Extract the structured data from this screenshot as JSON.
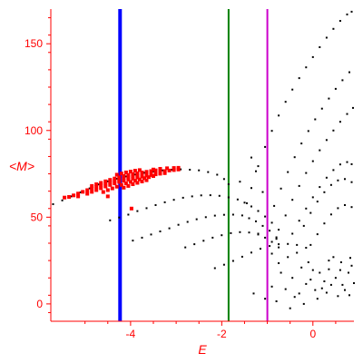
{
  "chart_data": {
    "type": "scatter",
    "xlabel": "E",
    "ylabel": "<M>",
    "xlim": [
      -5.75,
      0.9
    ],
    "ylim": [
      -10,
      170
    ],
    "xticks": [
      -4,
      -2,
      0
    ],
    "xtick_labels": [
      "-4",
      "-2",
      "0"
    ],
    "yticks": [
      0,
      50,
      100,
      150
    ],
    "ytick_labels": [
      "0",
      "50",
      "100",
      "150"
    ],
    "grid": false,
    "axis_color": "#ff0000",
    "vertical_lines": [
      {
        "x": -4.23,
        "color": "#0000ff"
      },
      {
        "x": -1.85,
        "color": "#008000"
      },
      {
        "x": -1.0,
        "color": "#cc00cc"
      }
    ],
    "series": [
      {
        "color": "#000000",
        "points": [
          [
            -5.7,
            57.5
          ],
          [
            -5.5,
            59.7
          ],
          [
            -5.3,
            62.0
          ],
          [
            -5.1,
            64.3
          ],
          [
            -4.9,
            66.6
          ],
          [
            -4.7,
            68.9
          ],
          [
            -4.5,
            70.7
          ],
          [
            -4.3,
            72.2
          ],
          [
            -4.1,
            73.5
          ],
          [
            -3.9,
            74.6
          ],
          [
            -3.7,
            75.6
          ],
          [
            -3.5,
            76.4
          ],
          [
            -3.3,
            77.0
          ],
          [
            -3.1,
            77.4
          ],
          [
            -2.9,
            77.6
          ],
          [
            -2.7,
            77.4
          ],
          [
            -2.5,
            77.0
          ],
          [
            -2.3,
            76.0
          ],
          [
            -2.1,
            74.5
          ],
          [
            -1.95,
            72.0
          ],
          [
            -1.85,
            69.0
          ],
          [
            -4.45,
            48.2
          ],
          [
            -4.25,
            49.8
          ],
          [
            -4.05,
            51.5
          ],
          [
            -3.85,
            53.5
          ],
          [
            -3.65,
            55.2
          ],
          [
            -3.45,
            57.0
          ],
          [
            -3.25,
            58.6
          ],
          [
            -3.05,
            60.0
          ],
          [
            -2.85,
            61.2
          ],
          [
            -2.65,
            62.0
          ],
          [
            -2.45,
            62.6
          ],
          [
            -2.25,
            62.7
          ],
          [
            -2.05,
            62.3
          ],
          [
            -1.85,
            61.4
          ],
          [
            -1.65,
            60.2
          ],
          [
            -1.5,
            58.4
          ],
          [
            -1.35,
            56.2
          ],
          [
            -1.2,
            53.6
          ],
          [
            -1.05,
            50.4
          ],
          [
            -0.9,
            46.8
          ],
          [
            -0.75,
            42.8
          ],
          [
            -3.95,
            36.5
          ],
          [
            -3.75,
            38.2
          ],
          [
            -3.55,
            40.0
          ],
          [
            -3.35,
            41.8
          ],
          [
            -3.15,
            43.6
          ],
          [
            -2.95,
            45.6
          ],
          [
            -2.75,
            47.3
          ],
          [
            -2.55,
            48.8
          ],
          [
            -2.35,
            50.0
          ],
          [
            -2.15,
            50.9
          ],
          [
            -1.95,
            51.4
          ],
          [
            -1.75,
            51.5
          ],
          [
            -1.55,
            51.0
          ],
          [
            -1.4,
            49.4
          ],
          [
            -1.25,
            47.6
          ],
          [
            -1.1,
            45.0
          ],
          [
            -0.95,
            42.2
          ],
          [
            -0.8,
            38.4
          ],
          [
            -2.8,
            32.6
          ],
          [
            -2.6,
            34.4
          ],
          [
            -2.4,
            36.4
          ],
          [
            -2.2,
            38.2
          ],
          [
            -2.0,
            39.6
          ],
          [
            -1.8,
            40.8
          ],
          [
            -1.6,
            41.4
          ],
          [
            -1.4,
            41.2
          ],
          [
            -1.2,
            40.0
          ],
          [
            -1.05,
            38.2
          ],
          [
            -0.9,
            35.8
          ],
          [
            -0.75,
            32.6
          ],
          [
            -2.15,
            20.6
          ],
          [
            -1.95,
            22.6
          ],
          [
            -1.75,
            24.8
          ],
          [
            -1.55,
            27.2
          ],
          [
            -1.35,
            29.6
          ],
          [
            -1.15,
            31.8
          ],
          [
            -0.95,
            33.4
          ],
          [
            -0.75,
            34.4
          ],
          [
            -0.55,
            34.6
          ],
          [
            -0.35,
            34.0
          ],
          [
            -0.15,
            32.4
          ],
          [
            -1.45,
            58.0
          ],
          [
            -1.35,
            66.8
          ],
          [
            -1.2,
            79.4
          ],
          [
            -1.05,
            90.5
          ],
          [
            -0.9,
            99.8
          ],
          [
            -0.75,
            108.6
          ],
          [
            -0.6,
            116.5
          ],
          [
            -0.45,
            123.6
          ],
          [
            -0.3,
            130.2
          ],
          [
            -0.15,
            136.4
          ],
          [
            0.0,
            142.3
          ],
          [
            0.15,
            148.0
          ],
          [
            0.3,
            153.5
          ],
          [
            0.45,
            158.6
          ],
          [
            0.6,
            163.2
          ],
          [
            0.75,
            166.9
          ],
          [
            0.85,
            168.5
          ],
          [
            -0.85,
            56.5
          ],
          [
            -0.7,
            66.5
          ],
          [
            -0.55,
            76.0
          ],
          [
            -0.4,
            84.6
          ],
          [
            -0.25,
            92.5
          ],
          [
            -0.1,
            99.7
          ],
          [
            0.05,
            106.4
          ],
          [
            0.2,
            112.6
          ],
          [
            0.35,
            118.4
          ],
          [
            0.5,
            124.0
          ],
          [
            0.65,
            129.0
          ],
          [
            0.8,
            133.6
          ],
          [
            -0.6,
            51.0
          ],
          [
            -0.45,
            60.0
          ],
          [
            -0.3,
            68.0
          ],
          [
            -0.15,
            75.5
          ],
          [
            0.0,
            82.3
          ],
          [
            0.15,
            88.6
          ],
          [
            0.3,
            94.5
          ],
          [
            0.45,
            100.0
          ],
          [
            0.6,
            105.0
          ],
          [
            0.75,
            109.5
          ],
          [
            0.88,
            113.0
          ],
          [
            -0.45,
            40.5
          ],
          [
            -0.3,
            48.0
          ],
          [
            -0.15,
            55.0
          ],
          [
            0.0,
            61.5
          ],
          [
            0.15,
            67.4
          ],
          [
            0.3,
            72.8
          ],
          [
            0.45,
            77.2
          ],
          [
            0.6,
            80.4
          ],
          [
            0.75,
            81.8
          ],
          [
            0.85,
            80.6
          ],
          [
            -0.2,
            45.0
          ],
          [
            -0.05,
            52.5
          ],
          [
            0.1,
            59.0
          ],
          [
            0.25,
            64.4
          ],
          [
            0.4,
            68.6
          ],
          [
            0.55,
            71.2
          ],
          [
            0.7,
            72.0
          ],
          [
            0.85,
            70.2
          ],
          [
            -0.05,
            34.0
          ],
          [
            0.1,
            40.2
          ],
          [
            0.25,
            46.4
          ],
          [
            0.4,
            51.6
          ],
          [
            0.55,
            55.2
          ],
          [
            0.7,
            57.0
          ],
          [
            0.85,
            55.8
          ],
          [
            -1.6,
            70.5
          ],
          [
            -1.35,
            84.4
          ],
          [
            -1.25,
            76.5
          ],
          [
            -1.1,
            64.5
          ],
          [
            -1.2,
            40.5
          ],
          [
            -0.8,
            37.5
          ],
          [
            -1.3,
            6.0
          ],
          [
            -1.05,
            3.0
          ],
          [
            -0.8,
            1.5
          ],
          [
            -0.5,
            -2.5
          ],
          [
            -0.2,
            0.0
          ],
          [
            0.1,
            3.0
          ],
          [
            -0.9,
            10.0
          ],
          [
            -0.6,
            8.5
          ],
          [
            -0.3,
            6.0
          ],
          [
            0.05,
            8.0
          ],
          [
            0.3,
            6.5
          ],
          [
            0.55,
            4.5
          ],
          [
            0.8,
            5.0
          ],
          [
            -0.7,
            18.0
          ],
          [
            -0.45,
            15.0
          ],
          [
            -0.25,
            21.0
          ],
          [
            -0.05,
            14.0
          ],
          [
            0.15,
            18.0
          ],
          [
            0.35,
            20.0
          ],
          [
            0.5,
            15.0
          ],
          [
            0.65,
            11.0
          ],
          [
            0.78,
            18.0
          ],
          [
            0.85,
            22.0
          ],
          [
            0.25,
            13.0
          ],
          [
            -0.1,
            24.0
          ],
          [
            -0.55,
            27.0
          ],
          [
            -0.35,
            29.5
          ],
          [
            0.45,
            27.0
          ],
          [
            0.62,
            24.0
          ],
          [
            0.82,
            26.5
          ],
          [
            -0.9,
            29.0
          ],
          [
            0.2,
            9.0
          ],
          [
            0.4,
            11.0
          ],
          [
            0.7,
            8.0
          ],
          [
            -0.15,
            11.5
          ],
          [
            0.0,
            19.5
          ],
          [
            0.6,
            19.5
          ],
          [
            -0.75,
            23.5
          ],
          [
            0.35,
            25.0
          ],
          [
            -0.4,
            4.0
          ],
          [
            0.9,
            12.0
          ]
        ]
      },
      {
        "color": "#ff0000",
        "points": [
          [
            -5.35,
            61.7
          ],
          [
            -5.25,
            62.6
          ],
          [
            -5.15,
            63.6
          ],
          [
            -5.05,
            64.6
          ],
          [
            -4.95,
            65.6
          ],
          [
            -4.85,
            66.6
          ],
          [
            -4.75,
            67.5
          ],
          [
            -4.65,
            68.4
          ],
          [
            -4.55,
            69.3
          ],
          [
            -4.45,
            70.1
          ],
          [
            -4.35,
            70.9
          ],
          [
            -4.25,
            71.6
          ],
          [
            -4.15,
            72.3
          ],
          [
            -4.05,
            72.9
          ],
          [
            -3.95,
            73.5
          ],
          [
            -3.85,
            74.0
          ],
          [
            -3.75,
            74.5
          ],
          [
            -3.65,
            75.0
          ],
          [
            -3.55,
            75.4
          ],
          [
            -3.45,
            75.8
          ],
          [
            -3.35,
            76.2
          ],
          [
            -3.25,
            76.6
          ],
          [
            -3.15,
            76.9
          ],
          [
            -3.05,
            77.2
          ],
          [
            -2.95,
            77.5
          ],
          [
            -4.95,
            63.5
          ],
          [
            -4.85,
            64.6
          ],
          [
            -4.75,
            65.6
          ],
          [
            -4.65,
            66.7
          ],
          [
            -4.55,
            67.7
          ],
          [
            -4.45,
            68.6
          ],
          [
            -4.35,
            69.5
          ],
          [
            -4.25,
            70.3
          ],
          [
            -4.15,
            71.0
          ],
          [
            -4.05,
            71.7
          ],
          [
            -3.95,
            72.3
          ],
          [
            -3.85,
            72.9
          ],
          [
            -3.75,
            73.4
          ],
          [
            -3.65,
            73.9
          ],
          [
            -3.55,
            74.3
          ],
          [
            -3.45,
            74.7
          ],
          [
            -3.35,
            75.1
          ],
          [
            -3.25,
            75.4
          ],
          [
            -4.85,
            68.0
          ],
          [
            -4.75,
            69.0
          ],
          [
            -4.65,
            69.8
          ],
          [
            -4.55,
            70.7
          ],
          [
            -4.45,
            71.5
          ],
          [
            -4.35,
            72.3
          ],
          [
            -4.25,
            73.0
          ],
          [
            -4.15,
            73.7
          ],
          [
            -4.05,
            74.3
          ],
          [
            -3.95,
            74.8
          ],
          [
            -3.85,
            75.3
          ],
          [
            -3.75,
            75.8
          ],
          [
            -3.65,
            76.2
          ],
          [
            -3.55,
            76.6
          ],
          [
            -3.45,
            77.0
          ],
          [
            -4.6,
            64.5
          ],
          [
            -4.5,
            65.6
          ],
          [
            -4.4,
            66.6
          ],
          [
            -4.3,
            67.6
          ],
          [
            -4.2,
            68.6
          ],
          [
            -4.1,
            69.5
          ],
          [
            -4.0,
            70.3
          ],
          [
            -3.9,
            71.1
          ],
          [
            -3.8,
            71.8
          ],
          [
            -3.7,
            72.5
          ],
          [
            -3.6,
            73.1
          ],
          [
            -3.5,
            73.7
          ],
          [
            -4.3,
            74.5
          ],
          [
            -4.2,
            75.2
          ],
          [
            -4.1,
            75.8
          ],
          [
            -4.0,
            76.3
          ],
          [
            -3.9,
            76.8
          ],
          [
            -3.8,
            77.2
          ],
          [
            -4.15,
            67.0
          ],
          [
            -4.05,
            68.0
          ],
          [
            -3.95,
            69.0
          ],
          [
            -3.85,
            69.8
          ],
          [
            -3.75,
            70.6
          ],
          [
            -3.65,
            71.3
          ],
          [
            -3.5,
            77.5
          ],
          [
            -3.35,
            77.9
          ],
          [
            -3.2,
            78.2
          ],
          [
            -3.05,
            78.4
          ],
          [
            -2.95,
            78.5
          ],
          [
            -5.45,
            61.3
          ],
          [
            -5.15,
            62.0
          ],
          [
            -4.5,
            62.0
          ],
          [
            -3.98,
            55.0
          ]
        ]
      }
    ]
  }
}
